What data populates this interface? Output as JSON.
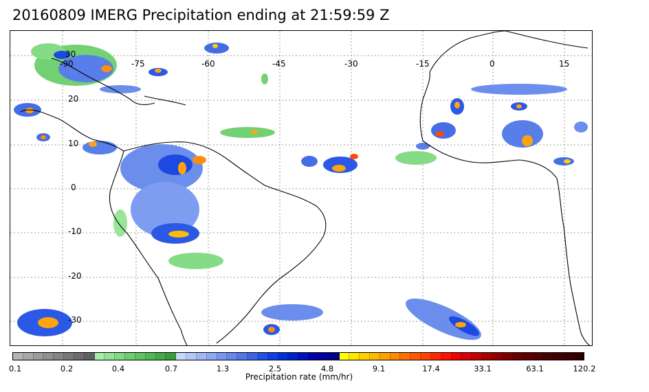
{
  "title": "20160809 IMERG Precipitation ending at 21:59:59 Z",
  "map": {
    "lon_labels": [
      "-90",
      "-75",
      "-60",
      "-45",
      "-30",
      "-15",
      "0",
      "15"
    ],
    "lat_labels": [
      "30",
      "20",
      "10",
      "0",
      "-10",
      "-20",
      "-30"
    ]
  },
  "colorbar": {
    "title": "Precipitation rate (mm/hr)",
    "tick_labels": [
      "0.1",
      "0.2",
      "0.4",
      "0.7",
      "1.3",
      "2.5",
      "4.8",
      "9.1",
      "17.4",
      "33.1",
      "63.1",
      "120.2"
    ],
    "colors": [
      "#b4b4b4",
      "#a8a8a8",
      "#9c9c9c",
      "#909090",
      "#848484",
      "#787878",
      "#6c6c6c",
      "#606060",
      "#a8eea8",
      "#94e494",
      "#80da80",
      "#6ccf6c",
      "#5ec45e",
      "#50b850",
      "#44ac44",
      "#389e38",
      "#c8d8f8",
      "#b4c8f8",
      "#a0b8f8",
      "#8caaf4",
      "#7898f0",
      "#6488ec",
      "#5078e8",
      "#3c66e4",
      "#2050e4",
      "#1040e0",
      "#0030d8",
      "#0020c8",
      "#0010b8",
      "#0000a8",
      "#00009a",
      "#00008c",
      "#ffff00",
      "#ffe800",
      "#ffd000",
      "#ffb800",
      "#ffa000",
      "#ff8800",
      "#ff7000",
      "#ff5800",
      "#ff4000",
      "#ff2800",
      "#ff1000",
      "#f00000",
      "#d80000",
      "#c00000",
      "#a80000",
      "#900000",
      "#7a0000",
      "#6a0000",
      "#5e0000",
      "#520000",
      "#480000",
      "#400000",
      "#380000",
      "#300000"
    ]
  }
}
